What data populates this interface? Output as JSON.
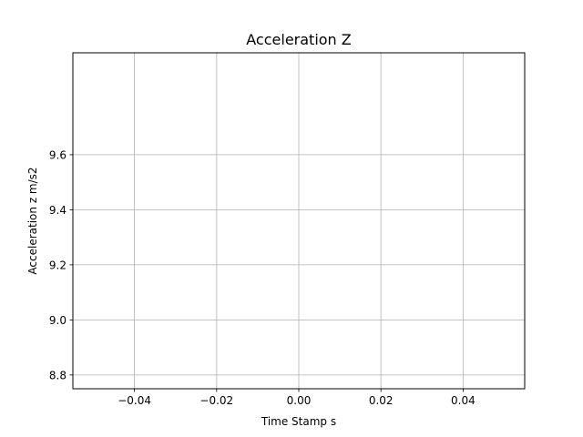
{
  "chart_data": {
    "type": "line",
    "title": "Acceleration Z",
    "xlabel": "Time Stamp s",
    "ylabel": "Acceleration z m/s2",
    "xlim": [
      -0.055,
      0.055
    ],
    "ylim": [
      8.75,
      9.97
    ],
    "xticks": [
      -0.04,
      -0.02,
      0.0,
      0.02,
      0.04
    ],
    "xtick_labels": [
      "−0.04",
      "−0.02",
      "0.00",
      "0.02",
      "0.04"
    ],
    "yticks": [
      8.8,
      9.0,
      9.2,
      9.4,
      9.6
    ],
    "ytick_labels": [
      "8.8",
      "9.0",
      "9.2",
      "9.4",
      "9.6"
    ],
    "grid": true,
    "grid_color": "#b0b0b0",
    "series": []
  }
}
